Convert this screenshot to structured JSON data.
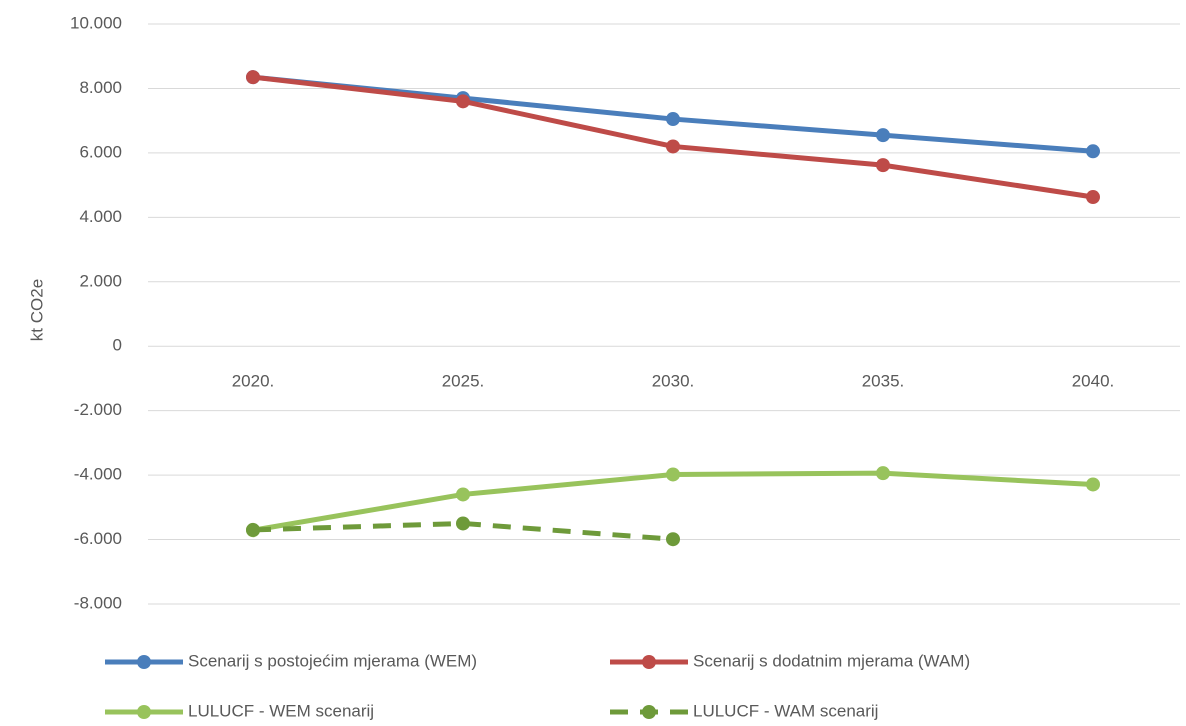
{
  "chart_data": {
    "type": "line",
    "y_label": "kt CO2e",
    "categories": [
      "2020.",
      "2025.",
      "2030.",
      "2035.",
      "2040."
    ],
    "series": [
      {
        "name": "Scenarij s postojećim mjerama (WEM)",
        "color": "#4a7ebb",
        "values": [
          8350,
          7700,
          7050,
          6550,
          6050
        ]
      },
      {
        "name": "Scenarij s dodatnim mjerama (WAM)",
        "color": "#be4b48",
        "values": [
          8350,
          7600,
          6200,
          5620,
          4630
        ]
      },
      {
        "name": "LULUCF - WEM scenarij",
        "color": "#98c35c",
        "values": [
          -5710,
          -4600,
          -3980,
          -3940,
          -4290
        ]
      },
      {
        "name": "LULUCF - WAM scenarij",
        "color": "#6e9a3a",
        "dashed": true,
        "values": [
          -5700,
          -5500,
          -5990,
          null,
          null
        ]
      }
    ],
    "ylim": [
      -8000,
      10000
    ],
    "yticks": [
      {
        "value": -8000,
        "label": "-8.000"
      },
      {
        "value": -6000,
        "label": "-6.000"
      },
      {
        "value": -4000,
        "label": "-4.000"
      },
      {
        "value": -2000,
        "label": "-2.000"
      },
      0,
      {
        "value": 2000,
        "label": "2.000"
      },
      {
        "value": 4000,
        "label": "4.000"
      },
      {
        "value": 6000,
        "label": "6.000"
      },
      {
        "value": 8000,
        "label": "8.000"
      },
      {
        "value": 10000,
        "label": "10.000"
      }
    ],
    "grid": true
  }
}
